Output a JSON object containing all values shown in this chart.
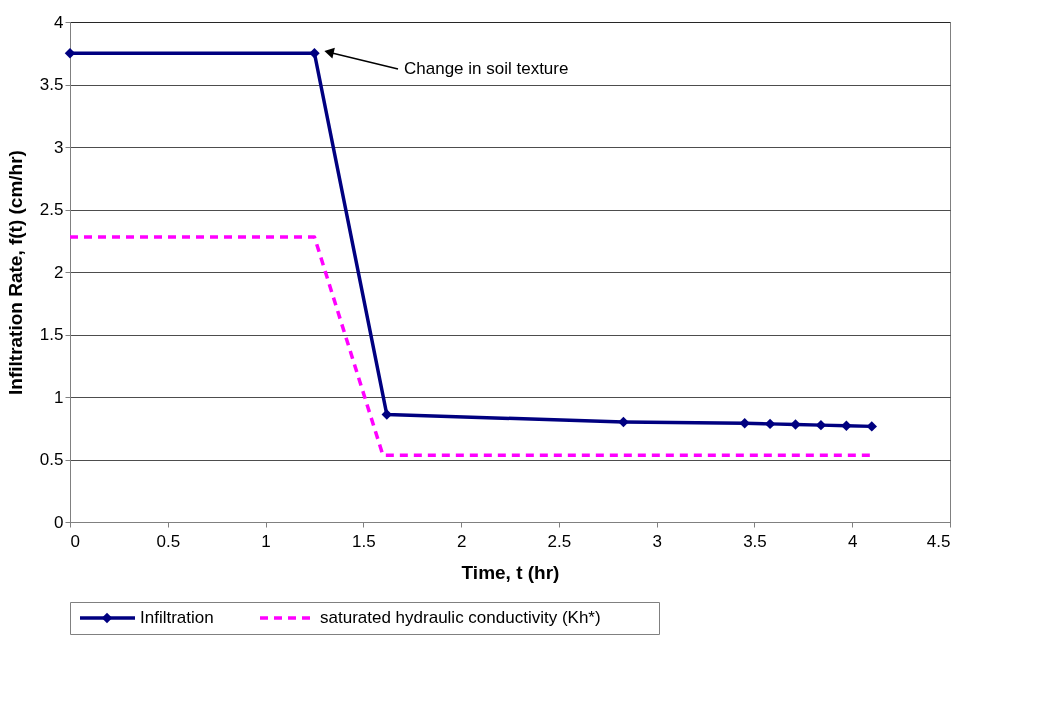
{
  "chart_data": {
    "type": "line",
    "xlabel": "Time, t (hr)",
    "ylabel": "Infiltration Rate, f(t) (cm/hr)",
    "xlim": [
      0,
      4.5
    ],
    "xticks": [
      0,
      0.5,
      1,
      1.5,
      2,
      2.5,
      3,
      3.5,
      4,
      4.5
    ],
    "ylim": [
      0,
      4
    ],
    "yticks": [
      0,
      0.5,
      1,
      1.5,
      2,
      2.5,
      3,
      3.5,
      4
    ],
    "grid": "y",
    "legend": "bottom",
    "annotations": [
      "Change in soil texture"
    ],
    "series": [
      {
        "name": "Infiltration",
        "color": "#000080",
        "marker": "diamond",
        "line_style": "solid",
        "x": [
          0,
          1.25,
          1.62,
          2.83,
          3.45,
          3.58,
          3.71,
          3.84,
          3.97,
          4.1
        ],
        "values": [
          3.75,
          3.75,
          0.86,
          0.8,
          0.79,
          0.785,
          0.78,
          0.775,
          0.77,
          0.765
        ]
      },
      {
        "name": "saturated hydraulic conductivity (Kh*)",
        "color": "#ff00ff",
        "marker": "none",
        "line_style": "dashed",
        "x": [
          0,
          1.25,
          1.6,
          4.1
        ],
        "values": [
          2.28,
          2.28,
          0.535,
          0.535
        ]
      }
    ]
  }
}
